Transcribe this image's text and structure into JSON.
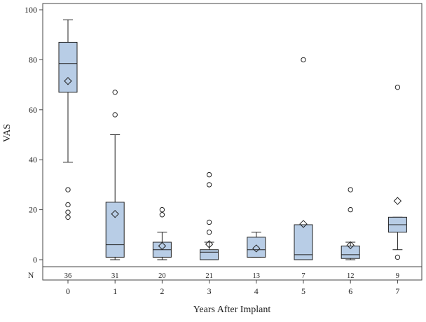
{
  "chart_data": {
    "type": "box",
    "xlabel": "Years After Implant",
    "ylabel": "VAS",
    "categories": [
      "0",
      "1",
      "2",
      "3",
      "4",
      "5",
      "6",
      "7"
    ],
    "ylim": [
      -8,
      102
    ],
    "yticks": [
      0,
      20,
      40,
      60,
      80,
      100
    ],
    "n_label": "N",
    "n_values": [
      "36",
      "31",
      "20",
      "21",
      "13",
      "7",
      "12",
      "9"
    ],
    "colors": {
      "box_fill": "#b8cde6",
      "line": "#222222",
      "frame": "#444444"
    },
    "grid": false,
    "boxes": [
      {
        "category": "0",
        "n": 36,
        "whisker_low": 39,
        "q1": 67,
        "median": 78.5,
        "q3": 87,
        "whisker_high": 96,
        "mean": 71.5,
        "outliers": [
          28,
          22,
          19,
          17
        ]
      },
      {
        "category": "1",
        "n": 31,
        "whisker_low": 0,
        "q1": 1,
        "median": 6,
        "q3": 23,
        "whisker_high": 50,
        "mean": 18.3,
        "outliers": [
          67,
          58
        ]
      },
      {
        "category": "2",
        "n": 20,
        "whisker_low": 0,
        "q1": 1,
        "median": 4,
        "q3": 7,
        "whisker_high": 11,
        "mean": 5.5,
        "outliers": [
          20,
          18
        ]
      },
      {
        "category": "3",
        "n": 21,
        "whisker_low": 0,
        "q1": 0,
        "median": 3,
        "q3": 4,
        "whisker_high": 7,
        "mean": 6.2,
        "outliers": [
          34,
          30,
          15,
          11
        ]
      },
      {
        "category": "4",
        "n": 13,
        "whisker_low": 1,
        "q1": 1,
        "median": 4,
        "q3": 9,
        "whisker_high": 11,
        "mean": 4.5,
        "outliers": []
      },
      {
        "category": "5",
        "n": 7,
        "whisker_low": 0,
        "q1": 0,
        "median": 2,
        "q3": 14,
        "whisker_high": 14,
        "mean": 14.3,
        "outliers": [
          80
        ]
      },
      {
        "category": "6",
        "n": 12,
        "whisker_low": 0,
        "q1": 0.5,
        "median": 2,
        "q3": 5.5,
        "whisker_high": 7,
        "mean": 5.8,
        "outliers": [
          28,
          20
        ]
      },
      {
        "category": "7",
        "n": 9,
        "whisker_low": 4,
        "q1": 11,
        "median": 14,
        "q3": 17,
        "whisker_high": 17,
        "mean": 23.5,
        "outliers": [
          69,
          1
        ]
      }
    ]
  }
}
